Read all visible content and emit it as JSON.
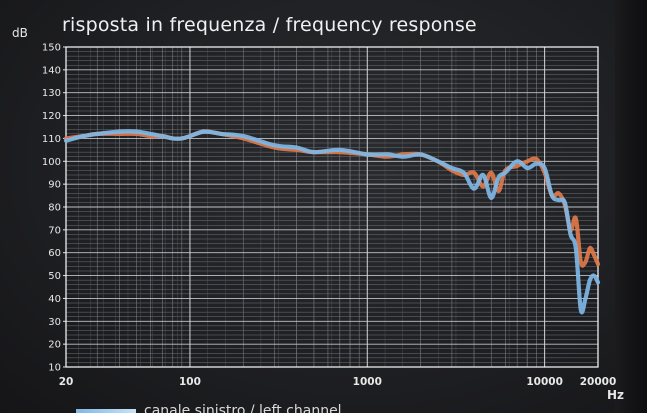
{
  "chart_data": {
    "type": "line",
    "title": "risposta in frequenza / frequency response",
    "ylabel": "dB",
    "xlabel": "Hz",
    "x_scale": "log",
    "xlim": [
      20,
      20000
    ],
    "ylim": [
      10,
      150
    ],
    "x_ticks": [
      "20",
      "100",
      "1000",
      "10000",
      "20000"
    ],
    "y_ticks": [
      "10",
      "20",
      "30",
      "40",
      "50",
      "60",
      "70",
      "80",
      "90",
      "100",
      "110",
      "120",
      "130",
      "140",
      "150"
    ],
    "grid": true,
    "legend_text": "canale sinistro / left channel",
    "series": [
      {
        "color": "#e0784a",
        "x": [
          20,
          25,
          30,
          40,
          50,
          60,
          70,
          80,
          90,
          100,
          120,
          150,
          200,
          300,
          400,
          500,
          700,
          1000,
          1300,
          1600,
          2000,
          2500,
          3000,
          3500,
          4000,
          4500,
          5000,
          5500,
          6000,
          7000,
          8000,
          9000,
          10000,
          11000,
          12000,
          13000,
          14000,
          15000,
          16000,
          17000,
          18000,
          19000,
          20000
        ],
        "y": [
          110,
          111,
          112,
          112,
          112,
          111,
          111,
          110,
          110,
          111,
          113,
          112,
          110,
          106,
          105,
          104,
          104,
          103,
          102,
          103,
          103,
          100,
          96,
          94,
          95,
          89,
          95,
          87,
          96,
          98,
          100,
          101,
          95,
          85,
          86,
          81,
          70,
          75,
          56,
          56,
          62,
          59,
          55
        ]
      },
      {
        "color": "#7fb7e6",
        "x": [
          20,
          25,
          30,
          40,
          50,
          60,
          70,
          80,
          90,
          100,
          120,
          150,
          200,
          300,
          400,
          500,
          700,
          1000,
          1300,
          1600,
          2000,
          2500,
          3000,
          3500,
          4000,
          4500,
          5000,
          5500,
          6000,
          7000,
          8000,
          9000,
          10000,
          11000,
          12000,
          13000,
          14000,
          15000,
          16000,
          17000,
          18000,
          19000,
          20000
        ],
        "y": [
          109,
          111,
          112,
          113,
          113,
          112,
          111,
          110,
          110,
          111,
          113,
          112,
          111,
          107,
          106,
          104,
          105,
          103,
          103,
          102,
          103,
          100,
          97,
          95,
          88,
          94,
          84,
          93,
          95,
          100,
          97,
          99,
          97,
          85,
          83,
          82,
          68,
          62,
          35,
          40,
          48,
          50,
          47
        ]
      }
    ]
  }
}
